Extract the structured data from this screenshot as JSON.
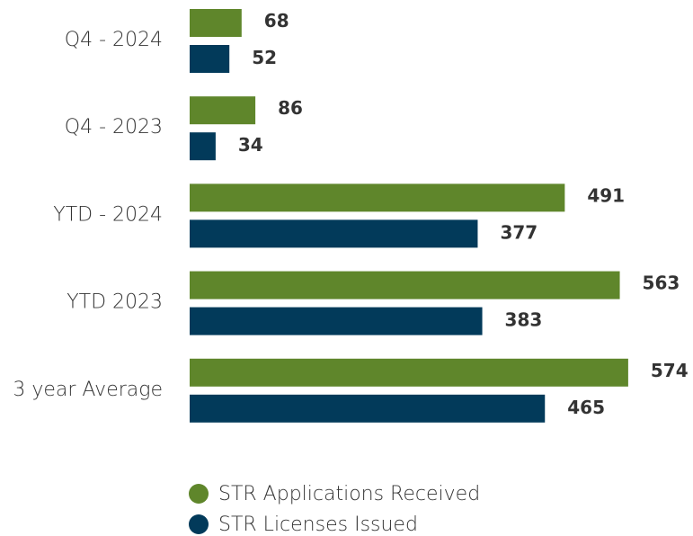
{
  "chart_data": {
    "type": "bar",
    "orientation": "horizontal",
    "categories": [
      "Q4 - 2024",
      "Q4 - 2023",
      "YTD - 2024",
      "YTD 2023",
      "3 year Average"
    ],
    "series": [
      {
        "name": "STR Applications Received",
        "color": "#5f862b",
        "values": [
          68,
          86,
          491,
          563,
          574
        ]
      },
      {
        "name": "STR Licenses Issued",
        "color": "#023a5a",
        "values": [
          52,
          34,
          377,
          383,
          465
        ]
      }
    ],
    "xlim": [
      0,
      600
    ],
    "legend": "bottom"
  }
}
